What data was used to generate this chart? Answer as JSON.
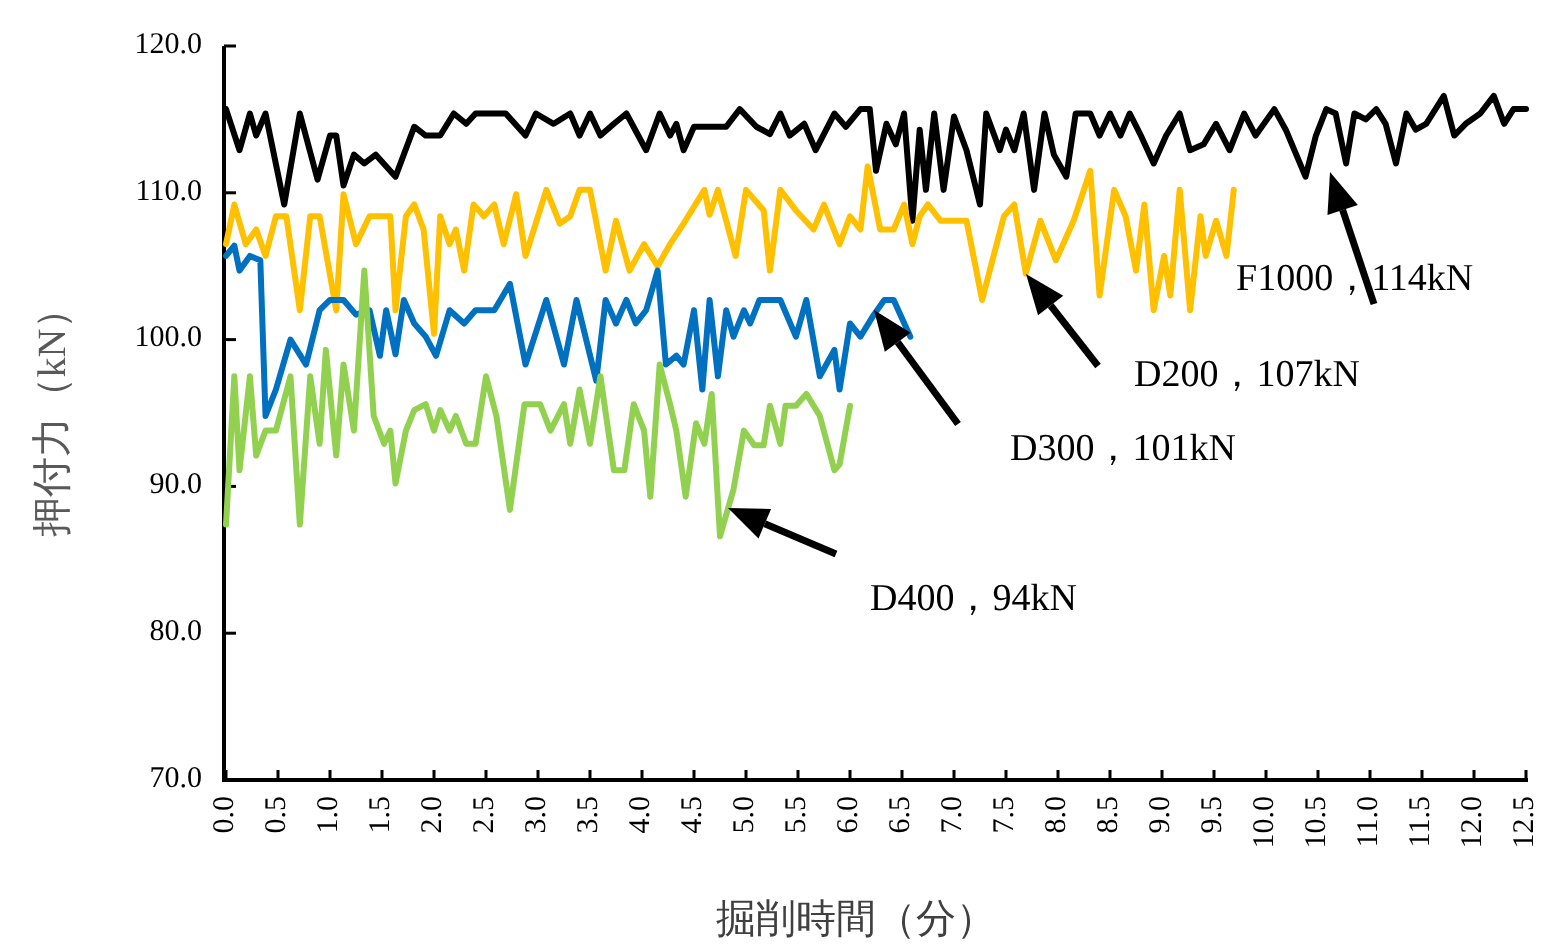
{
  "chart_data": {
    "type": "line",
    "xlabel": "掘削時間（分）",
    "ylabel": "押付力（kN）",
    "xlim": [
      0,
      12.5
    ],
    "ylim": [
      70,
      120
    ],
    "xticks": [
      {
        "value": 0,
        "label": "0.0"
      },
      {
        "value": 0.5,
        "label": "0.5"
      },
      {
        "value": 1,
        "label": "1.0"
      },
      {
        "value": 1.5,
        "label": "1.5"
      },
      {
        "value": 2,
        "label": "2.0"
      },
      {
        "value": 2.5,
        "label": "2.5"
      },
      {
        "value": 3,
        "label": "3.0"
      },
      {
        "value": 3.5,
        "label": "3.5"
      },
      {
        "value": 4,
        "label": "4.0"
      },
      {
        "value": 4.5,
        "label": "4.5"
      },
      {
        "value": 5,
        "label": "5.0"
      },
      {
        "value": 5.5,
        "label": "5.5"
      },
      {
        "value": 6,
        "label": "6.0"
      },
      {
        "value": 6.5,
        "label": "6.5"
      },
      {
        "value": 7,
        "label": "7.0"
      },
      {
        "value": 7.5,
        "label": "7.5"
      },
      {
        "value": 8,
        "label": "8.0"
      },
      {
        "value": 8.5,
        "label": "8.5"
      },
      {
        "value": 9,
        "label": "9.0"
      },
      {
        "value": 9.5,
        "label": "9.5"
      },
      {
        "value": 10,
        "label": "10.0"
      },
      {
        "value": 10.5,
        "label": "10.5"
      },
      {
        "value": 11,
        "label": "11.0"
      },
      {
        "value": 11.5,
        "label": "11.5"
      },
      {
        "value": 12,
        "label": "12.0"
      },
      {
        "value": 12.5,
        "label": "12.5"
      }
    ],
    "yticks": [
      {
        "value": 70,
        "label": "70.0"
      },
      {
        "value": 80,
        "label": "80.0"
      },
      {
        "value": 90,
        "label": "90.0"
      },
      {
        "value": 100,
        "label": "100.0"
      },
      {
        "value": 110,
        "label": "110.0"
      },
      {
        "value": 120,
        "label": "120.0"
      }
    ],
    "grid": false,
    "marker": "none",
    "line_style": "solid",
    "series": [
      {
        "color": "#000000",
        "x": [
          0,
          0.13,
          0.23,
          0.29,
          0.38,
          0.56,
          0.71,
          0.88,
          1.0,
          1.06,
          1.13,
          1.23,
          1.33,
          1.44,
          1.63,
          1.81,
          1.92,
          2.06,
          2.19,
          2.31,
          2.4,
          2.69,
          2.88,
          2.98,
          3.15,
          3.31,
          3.4,
          3.5,
          3.6,
          3.73,
          3.85,
          4.04,
          4.17,
          4.27,
          4.33,
          4.4,
          4.5,
          4.81,
          4.94,
          5.1,
          5.23,
          5.33,
          5.42,
          5.56,
          5.67,
          5.85,
          5.96,
          6.1,
          6.19,
          6.25,
          6.35,
          6.44,
          6.52,
          6.6,
          6.67,
          6.73,
          6.81,
          6.9,
          7.0,
          7.12,
          7.25,
          7.31,
          7.44,
          7.5,
          7.58,
          7.67,
          7.77,
          7.87,
          7.96,
          8.08,
          8.17,
          8.31,
          8.4,
          8.5,
          8.6,
          8.69,
          8.79,
          8.92,
          9.04,
          9.17,
          9.27,
          9.4,
          9.52,
          9.65,
          9.79,
          9.9,
          10.08,
          10.19,
          10.38,
          10.48,
          10.58,
          10.67,
          10.77,
          10.85,
          10.96,
          11.06,
          11.15,
          11.25,
          11.35,
          11.44,
          11.54,
          11.63,
          11.71,
          11.81,
          11.92,
          12.06,
          12.19,
          12.29,
          12.38,
          12.5
        ],
        "values": [
          115.7,
          112.9,
          115.4,
          113.9,
          115.4,
          109.2,
          115.4,
          110.9,
          113.9,
          113.9,
          110.5,
          112.6,
          112,
          112.6,
          111.1,
          114.5,
          113.9,
          113.9,
          115.4,
          114.7,
          115.4,
          115.4,
          113.9,
          115.4,
          114.7,
          115.4,
          113.9,
          115.4,
          113.9,
          114.7,
          115.4,
          112.9,
          115.4,
          113.9,
          114.7,
          112.9,
          114.5,
          114.5,
          115.7,
          114.5,
          114,
          115.4,
          113.9,
          114.7,
          112.9,
          115.4,
          114.5,
          115.7,
          115.7,
          111.5,
          114.7,
          113.3,
          115.4,
          108.1,
          114.3,
          110.2,
          115.4,
          110.2,
          115.2,
          112.9,
          109.2,
          115.4,
          112.9,
          114.3,
          112.9,
          115.4,
          110.2,
          115.4,
          112.6,
          111.1,
          115.4,
          115.4,
          113.9,
          115.4,
          113.9,
          115.4,
          114,
          112,
          113.9,
          115.4,
          112.9,
          113.3,
          114.7,
          112.9,
          115.4,
          113.9,
          115.7,
          114.3,
          111.1,
          113.9,
          115.7,
          115.4,
          112,
          115.4,
          115,
          115.7,
          114.7,
          112,
          115.4,
          114.3,
          114.7,
          115.7,
          116.6,
          113.9,
          114.7,
          115.4,
          116.6,
          114.7,
          115.7,
          115.7
        ]
      },
      {
        "color": "#ffc000",
        "x": [
          0,
          0.08,
          0.19,
          0.29,
          0.38,
          0.48,
          0.58,
          0.71,
          0.81,
          0.9,
          1.06,
          1.13,
          1.25,
          1.38,
          1.58,
          1.63,
          1.73,
          1.81,
          1.9,
          2.0,
          2.06,
          2.15,
          2.21,
          2.29,
          2.38,
          2.48,
          2.58,
          2.67,
          2.79,
          2.88,
          3.08,
          3.21,
          3.31,
          3.4,
          3.5,
          3.65,
          3.75,
          3.88,
          4.02,
          4.15,
          4.27,
          4.4,
          4.6,
          4.65,
          4.73,
          4.9,
          5.0,
          5.17,
          5.23,
          5.33,
          5.48,
          5.65,
          5.75,
          5.9,
          6.0,
          6.1,
          6.17,
          6.29,
          6.42,
          6.52,
          6.6,
          6.67,
          6.75,
          6.87,
          7.12,
          7.27,
          7.48,
          7.58,
          7.69,
          7.83,
          7.98,
          8.15,
          8.31,
          8.4,
          8.54,
          8.65,
          8.75,
          8.83,
          8.92,
          9.02,
          9.08,
          9.17,
          9.27,
          9.37,
          9.42,
          9.52,
          9.62,
          9.69
        ],
        "values": [
          106.5,
          109.2,
          106.5,
          107.5,
          105.7,
          108.4,
          108.4,
          102,
          108.4,
          108.4,
          102,
          109.9,
          106.5,
          108.4,
          108.4,
          102,
          108.4,
          109.2,
          107.5,
          100.4,
          108.4,
          106.5,
          107.5,
          104.7,
          109.2,
          108.4,
          109.2,
          106.5,
          109.9,
          105.7,
          110.2,
          107.9,
          108.4,
          110.2,
          110.2,
          104.7,
          108.1,
          104.7,
          106.5,
          105,
          106.5,
          107.9,
          110.2,
          108.5,
          110.2,
          105.7,
          110.2,
          108.8,
          104.7,
          110.2,
          108.8,
          107.5,
          109.2,
          106.5,
          108.4,
          107.5,
          111.8,
          107.5,
          107.5,
          109.2,
          106.5,
          108.4,
          109.2,
          108.1,
          108.1,
          102.7,
          108.4,
          109.2,
          104.5,
          108.1,
          105.4,
          108.1,
          111.5,
          103,
          110.2,
          108.4,
          104.7,
          109.2,
          102,
          105.7,
          103,
          110.2,
          102,
          108.4,
          105.7,
          108.1,
          105.7,
          110.2
        ]
      },
      {
        "color": "#0070c0",
        "x": [
          0,
          0.08,
          0.13,
          0.23,
          0.33,
          0.38,
          0.48,
          0.62,
          0.77,
          0.9,
          1.0,
          1.13,
          1.25,
          1.38,
          1.48,
          1.54,
          1.63,
          1.71,
          1.81,
          1.92,
          2.02,
          2.15,
          2.29,
          2.4,
          2.58,
          2.73,
          2.88,
          3.08,
          3.25,
          3.37,
          3.56,
          3.65,
          3.75,
          3.85,
          3.94,
          4.04,
          4.15,
          4.23,
          4.33,
          4.4,
          4.5,
          4.58,
          4.65,
          4.73,
          4.81,
          4.88,
          4.98,
          5.04,
          5.13,
          5.33,
          5.48,
          5.58,
          5.71,
          5.85,
          5.9,
          6.0,
          6.1,
          6.23,
          6.33,
          6.42,
          6.58
        ],
        "values": [
          105.7,
          106.4,
          104.7,
          105.7,
          105.4,
          94.8,
          96.6,
          100,
          98.3,
          102,
          102.7,
          102.7,
          101.7,
          102,
          98.9,
          102,
          99,
          102.7,
          101.1,
          100.2,
          98.9,
          102,
          101.1,
          102,
          102,
          103.8,
          98.3,
          102.7,
          98.3,
          102.7,
          97.2,
          102.7,
          101.1,
          102.7,
          101.1,
          102,
          104.7,
          98.3,
          98.9,
          98.3,
          102,
          96.6,
          102.7,
          97.5,
          102,
          100.2,
          102,
          101.1,
          102.7,
          102.7,
          100.2,
          102.7,
          97.5,
          99.3,
          96.6,
          101.1,
          100.2,
          101.7,
          102.7,
          102.7,
          100.2
        ]
      },
      {
        "color": "#92d050",
        "x": [
          0,
          0.08,
          0.13,
          0.23,
          0.29,
          0.38,
          0.48,
          0.62,
          0.71,
          0.81,
          0.9,
          0.96,
          1.06,
          1.13,
          1.23,
          1.33,
          1.42,
          1.52,
          1.58,
          1.63,
          1.73,
          1.81,
          1.92,
          2.0,
          2.06,
          2.15,
          2.21,
          2.31,
          2.4,
          2.5,
          2.6,
          2.73,
          2.87,
          3.02,
          3.12,
          3.25,
          3.31,
          3.4,
          3.5,
          3.6,
          3.73,
          3.83,
          3.92,
          4.02,
          4.08,
          4.17,
          4.27,
          4.33,
          4.42,
          4.52,
          4.6,
          4.67,
          4.75,
          4.88,
          4.98,
          5.08,
          5.17,
          5.23,
          5.33,
          5.38,
          5.48,
          5.58,
          5.71,
          5.85,
          5.9,
          6.0
        ],
        "values": [
          87.4,
          97.5,
          91.1,
          97.5,
          92.1,
          93.8,
          93.8,
          97.5,
          87.4,
          97.5,
          92.9,
          99.3,
          92.1,
          98.3,
          93.8,
          104.7,
          94.8,
          92.9,
          93.8,
          90.2,
          93.8,
          95.2,
          95.6,
          93.8,
          95.2,
          93.8,
          94.8,
          92.9,
          92.9,
          97.5,
          94.8,
          88.4,
          95.6,
          95.6,
          93.8,
          95.6,
          92.9,
          96.6,
          92.9,
          97.5,
          91.1,
          91.1,
          95.6,
          93.8,
          89.3,
          98.3,
          95.6,
          93.8,
          89.3,
          94.3,
          92.9,
          96.3,
          86.6,
          89.8,
          93.8,
          92.8,
          92.8,
          95.5,
          92.9,
          95.5,
          95.5,
          96.3,
          94.8,
          91.1,
          91.5,
          95.5
        ]
      }
    ],
    "annotations": [
      "F1000，114kN",
      "D200，107kN",
      "D300，101kN",
      "D400，94kN"
    ]
  }
}
